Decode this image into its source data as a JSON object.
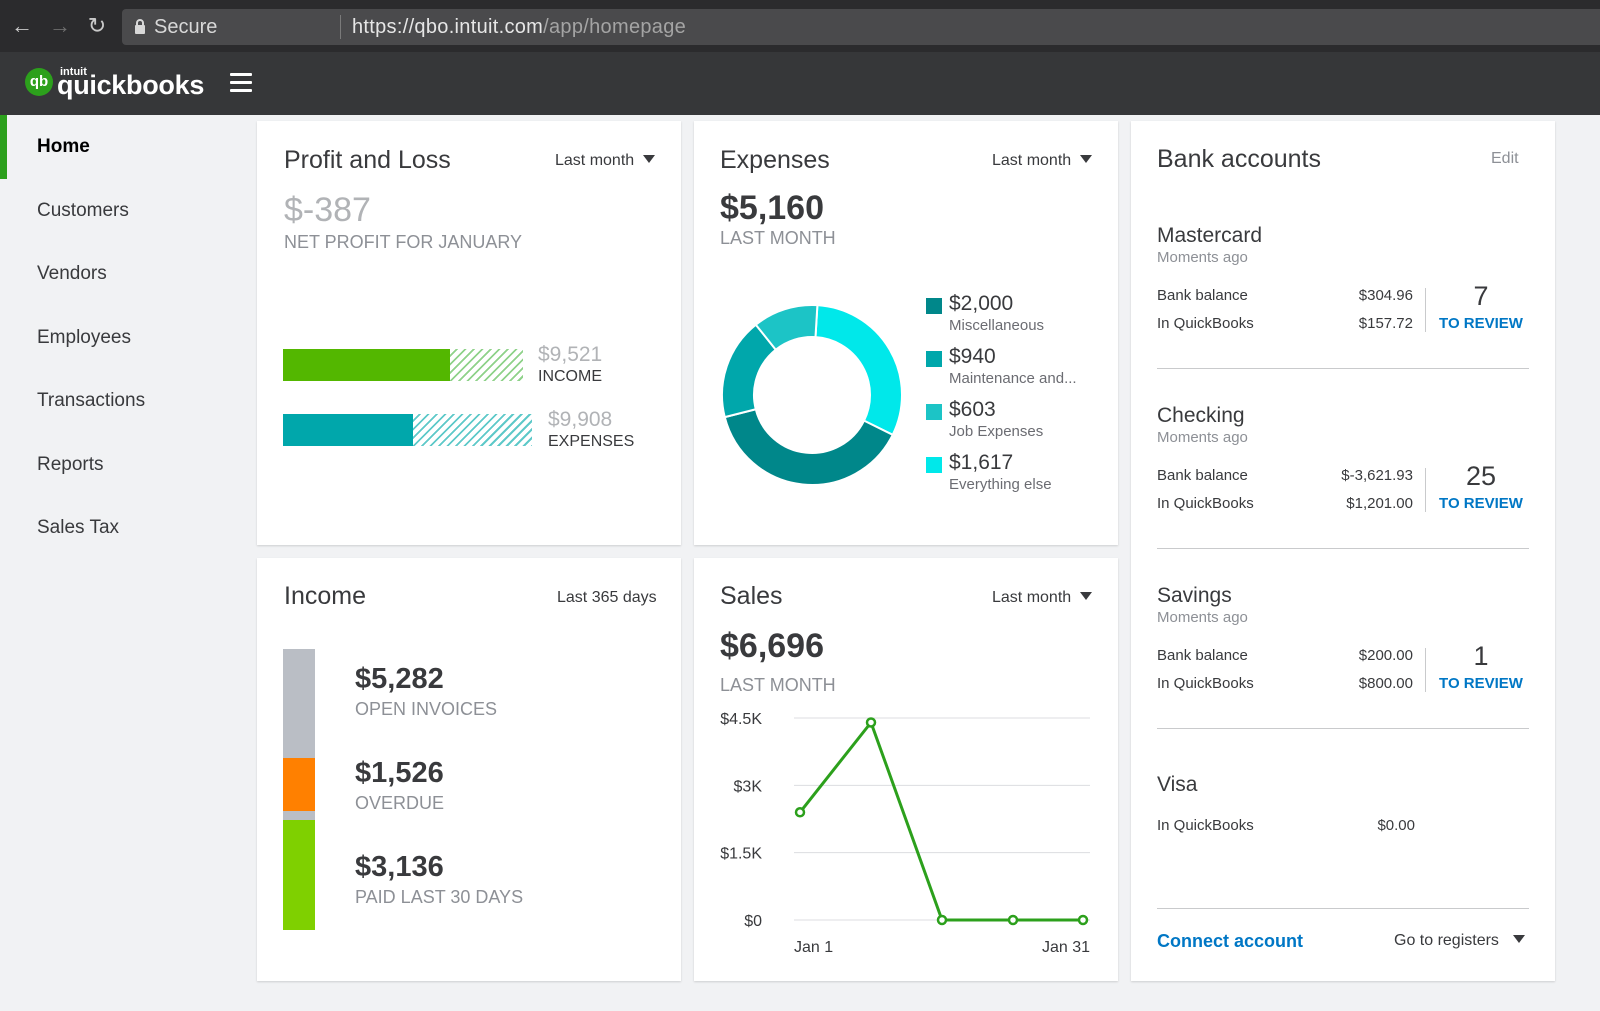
{
  "browser": {
    "secure_label": "Secure",
    "url_main": "https://qbo.intuit.com",
    "url_path": "/app/homepage"
  },
  "app": {
    "brand_small": "intuit",
    "brand": "quickbooks",
    "logo_letters": "qb"
  },
  "sidebar": {
    "items": [
      {
        "label": "Home",
        "active": true
      },
      {
        "label": "Customers"
      },
      {
        "label": "Vendors"
      },
      {
        "label": "Employees"
      },
      {
        "label": "Transactions"
      },
      {
        "label": "Reports"
      },
      {
        "label": "Sales Tax"
      }
    ]
  },
  "profit_loss": {
    "title": "Profit and Loss",
    "period": "Last month",
    "net_value": "$-387",
    "net_label": "NET PROFIT FOR JANUARY",
    "income_amount": "$9,521",
    "income_label": "INCOME",
    "expenses_amount": "$9,908",
    "expenses_label": "EXPENSES"
  },
  "expenses": {
    "title": "Expenses",
    "period": "Last month",
    "total": "$5,160",
    "total_label": "LAST MONTH",
    "legend": [
      {
        "amount": "$2,000",
        "label": "Miscellaneous",
        "color": "#00878a"
      },
      {
        "amount": "$940",
        "label": "Maintenance and...",
        "color": "#00a7ab"
      },
      {
        "amount": "$603",
        "label": "Job Expenses",
        "color": "#1cc4c6"
      },
      {
        "amount": "$1,617",
        "label": "Everything else",
        "color": "#00e8ea"
      }
    ]
  },
  "income": {
    "title": "Income",
    "period": "Last 365 days",
    "open_invoices": "$5,282",
    "open_label": "OPEN INVOICES",
    "overdue": "$1,526",
    "overdue_label": "OVERDUE",
    "paid": "$3,136",
    "paid_label": "PAID LAST 30 DAYS",
    "colors": {
      "open": "#babec5",
      "overdue": "#ff8000",
      "paid": "#7fd000"
    }
  },
  "sales": {
    "title": "Sales",
    "period": "Last month",
    "total": "$6,696",
    "total_label": "LAST MONTH",
    "y_ticks": [
      "$4.5K",
      "$3K",
      "$1.5K",
      "$0"
    ],
    "x_start": "Jan 1",
    "x_end": "Jan 31"
  },
  "chart_data": {
    "type": "line",
    "x": [
      "Jan 1",
      "",
      "",
      "",
      "Jan 31"
    ],
    "series": [
      {
        "values": [
          2400,
          4400,
          0,
          0,
          0
        ]
      }
    ],
    "ylim": [
      0,
      4500
    ],
    "yticks": [
      "$4.5K",
      "$3K",
      "$1.5K",
      "$0"
    ],
    "grid": true,
    "color": "#2ca01c"
  },
  "bank": {
    "title": "Bank accounts",
    "edit": "Edit",
    "bank_balance_label": "Bank balance",
    "in_qb_label": "In QuickBooks",
    "to_review_label": "TO REVIEW",
    "accounts": [
      {
        "name": "Mastercard",
        "time": "Moments ago",
        "bank": "$304.96",
        "qb": "$157.72",
        "review": "7"
      },
      {
        "name": "Checking",
        "time": "Moments ago",
        "bank": "$-3,621.93",
        "qb": "$1,201.00",
        "review": "25"
      },
      {
        "name": "Savings",
        "time": "Moments ago",
        "bank": "$200.00",
        "qb": "$800.00",
        "review": "1"
      },
      {
        "name": "Visa",
        "qb": "$0.00"
      }
    ],
    "connect": "Connect account",
    "registers": "Go to registers"
  }
}
